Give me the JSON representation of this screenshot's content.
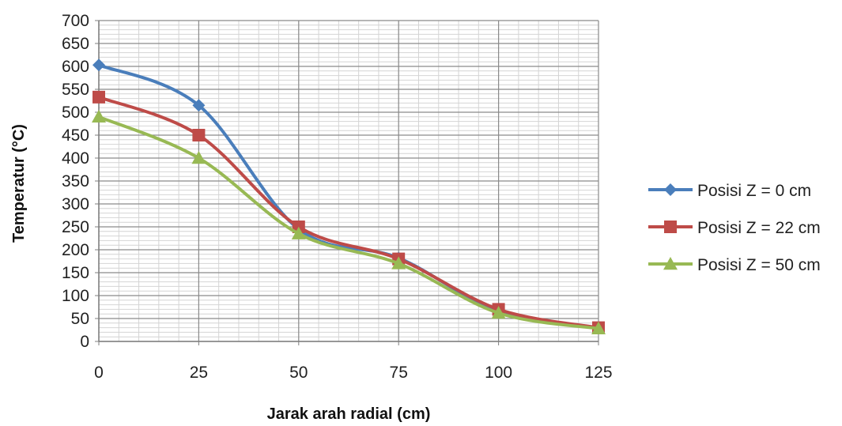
{
  "chart_data": {
    "type": "line",
    "title": "",
    "xlabel": "Jarak arah radial (cm)",
    "ylabel": "Temperatur (°C)",
    "x": [
      0,
      25,
      50,
      75,
      100,
      125
    ],
    "xticks": [
      "0",
      "25",
      "50",
      "75",
      "100",
      "125"
    ],
    "xlim": [
      0,
      125
    ],
    "ylim": [
      0,
      700
    ],
    "yticks": [
      "0",
      "50",
      "100",
      "150",
      "200",
      "250",
      "300",
      "350",
      "400",
      "450",
      "500",
      "550",
      "600",
      "650",
      "700"
    ],
    "grid": true,
    "legend_position": "right",
    "series": [
      {
        "name": "Posisi Z = 0 cm",
        "color": "#4a7ebb",
        "marker": "diamond",
        "values": [
          603,
          515,
          245,
          182,
          65,
          30
        ]
      },
      {
        "name": "Posisi Z = 22 cm",
        "color": "#be4b48",
        "marker": "square",
        "values": [
          533,
          450,
          250,
          180,
          70,
          30
        ]
      },
      {
        "name": "Posisi Z = 50 cm",
        "color": "#98b954",
        "marker": "triangle",
        "values": [
          490,
          400,
          235,
          170,
          62,
          28
        ]
      }
    ]
  }
}
